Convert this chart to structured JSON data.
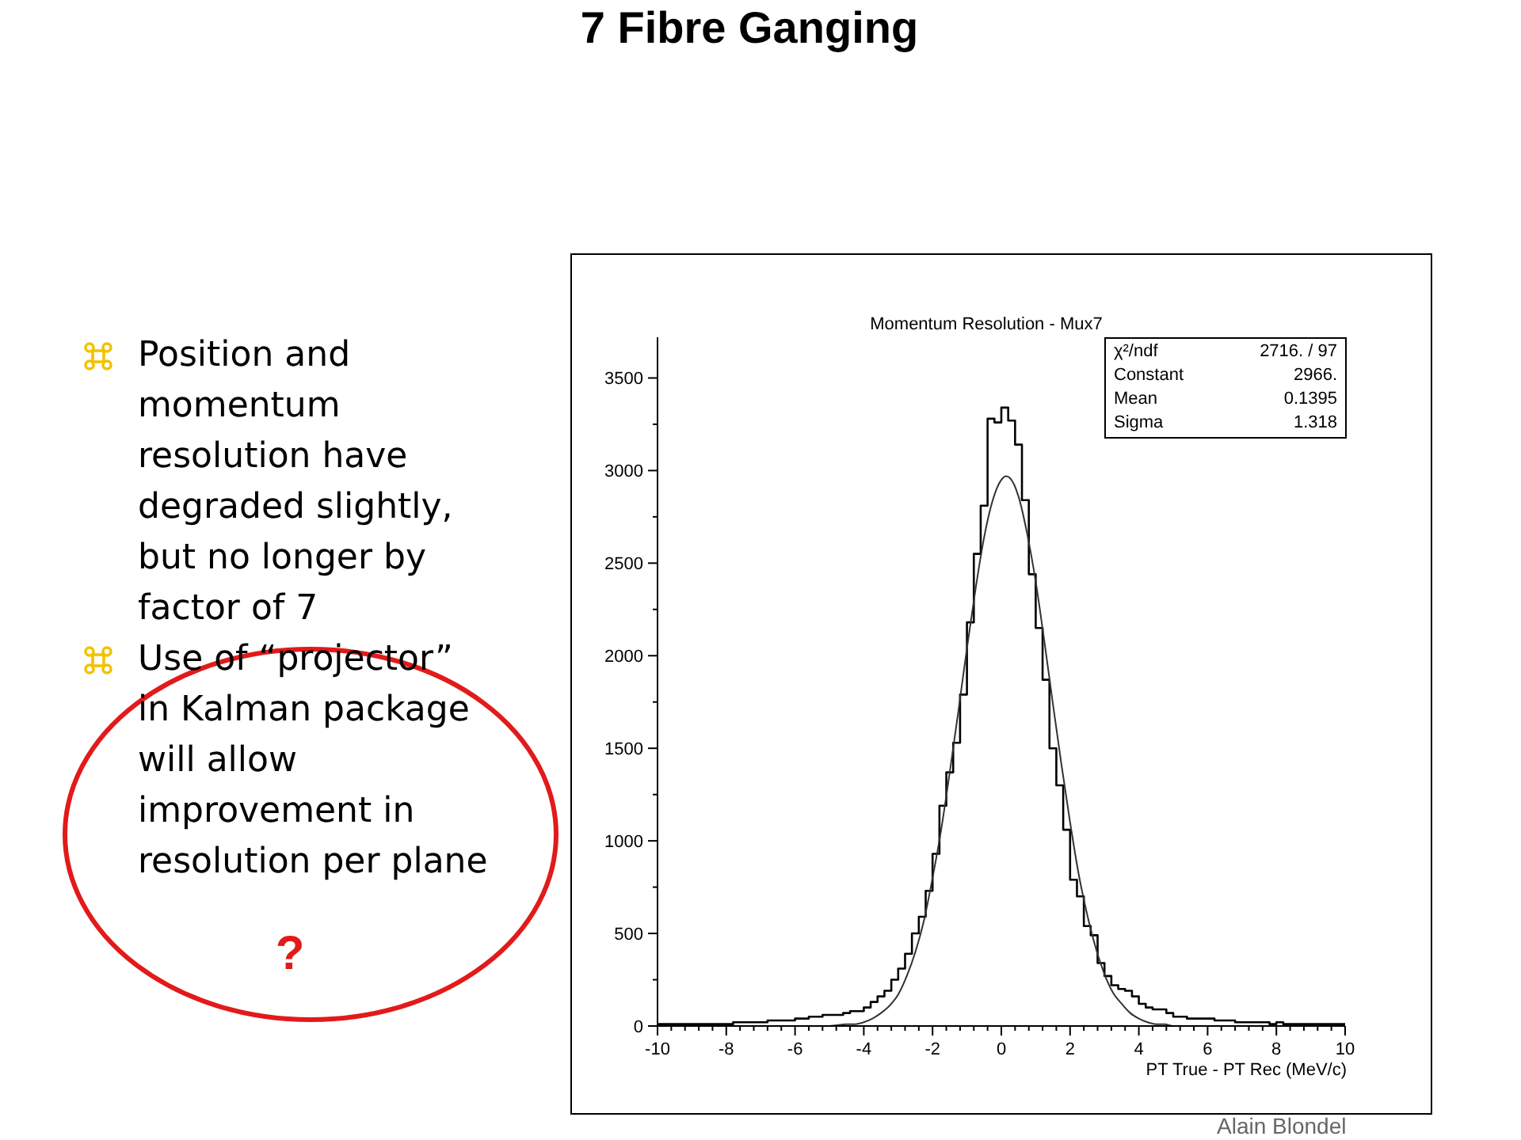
{
  "chart_data": {
    "type": "histogram",
    "title": "7 Fibre Ganging",
    "subtitle": "Momentum Resolution - Mux7",
    "xlabel": "PT True - PT Rec (MeV/c)",
    "annotations": [
      "Position and momentum resolution have degraded slightly, but no longer by factor of 7",
      "Use of “projector” in Kalman package will allow improvement in resolution per plane",
      "?",
      "χ²/ndf 2716. / 97",
      "Constant 2966.",
      "Mean 0.1395",
      "Sigma 1.318",
      "Alain Blondel"
    ],
    "xlim": [
      -10,
      10
    ],
    "xticks": [
      -10,
      {
        "value": -9.6,
        "label": null
      },
      {
        "value": -9.2,
        "label": null
      },
      {
        "value": -8.8,
        "label": null
      },
      {
        "value": -8.4,
        "label": null
      },
      -8,
      {
        "value": -7.6,
        "label": null
      },
      {
        "value": -7.2,
        "label": null
      },
      {
        "value": -6.8,
        "label": null
      },
      {
        "value": -6.4,
        "label": null
      },
      -6,
      {
        "value": -5.6,
        "label": null
      },
      {
        "value": -5.2,
        "label": null
      },
      {
        "value": -4.8,
        "label": null
      },
      {
        "value": -4.4,
        "label": null
      },
      -4,
      {
        "value": -3.6,
        "label": null
      },
      {
        "value": -3.2,
        "label": null
      },
      {
        "value": -2.8,
        "label": null
      },
      {
        "value": -2.4,
        "label": null
      },
      -2,
      {
        "value": -1.6,
        "label": null
      },
      {
        "value": -1.2,
        "label": null
      },
      {
        "value": -0.8,
        "label": null
      },
      {
        "value": -0.4,
        "label": null
      },
      0,
      {
        "value": 0.4,
        "label": null
      },
      {
        "value": 0.8,
        "label": null
      },
      {
        "value": 1.2,
        "label": null
      },
      {
        "value": 1.6,
        "label": null
      },
      2,
      {
        "value": 2.4,
        "label": null
      },
      {
        "value": 2.8,
        "label": null
      },
      {
        "value": 3.2,
        "label": null
      },
      {
        "value": 3.6,
        "label": null
      },
      4,
      {
        "value": 4.4,
        "label": null
      },
      {
        "value": 4.8,
        "label": null
      },
      {
        "value": 5.2,
        "label": null
      },
      {
        "value": 5.6,
        "label": null
      },
      6,
      {
        "value": 6.4,
        "label": null
      },
      {
        "value": 6.8,
        "label": null
      },
      {
        "value": 7.2,
        "label": null
      },
      {
        "value": 7.6,
        "label": null
      },
      8,
      {
        "value": 8.4,
        "label": null
      },
      {
        "value": 8.8,
        "label": null
      },
      {
        "value": 9.2,
        "label": null
      },
      {
        "value": 9.6,
        "label": null
      },
      10
    ],
    "ylim": [
      0,
      3720
    ],
    "yticks": [
      0,
      {
        "value": 250,
        "label": null
      },
      500,
      {
        "value": 750,
        "label": null
      },
      1000,
      {
        "value": 1250,
        "label": null
      },
      1500,
      {
        "value": 1750,
        "label": null
      },
      2000,
      {
        "value": 2250,
        "label": null
      },
      2500,
      {
        "value": 2750,
        "label": null
      },
      3000,
      {
        "value": 3250,
        "label": null
      },
      3500
    ],
    "series": [
      {
        "color": "#000000",
        "bins": [
          -10,
          -9.8,
          -9.6,
          -9.4,
          -9.2,
          -9,
          -8.8,
          -8.6,
          -8.4,
          -8.2,
          -8,
          -7.8,
          -7.6,
          -7.4,
          -7.2,
          -7,
          -6.8,
          -6.6,
          -6.4,
          -6.2,
          -6,
          -5.8,
          -5.6,
          -5.4,
          -5.2,
          -5,
          -4.8,
          -4.6,
          -4.4,
          -4.2,
          -4,
          -3.8,
          -3.6,
          -3.4,
          -3.2,
          -3,
          -2.8,
          -2.6,
          -2.4,
          -2.2,
          -2,
          -1.8,
          -1.6,
          -1.4,
          -1.2,
          -1,
          -0.8,
          -0.6,
          -0.4,
          -0.2,
          0,
          0.2,
          0.4,
          0.6,
          0.8,
          1,
          1.2,
          1.4,
          1.6,
          1.8,
          2,
          2.2,
          2.4,
          2.6,
          2.8,
          3,
          3.2,
          3.4,
          3.6,
          3.8,
          4,
          4.2,
          4.4,
          4.6,
          4.8,
          5,
          5.2,
          5.4,
          5.6,
          5.8,
          6,
          6.2,
          6.4,
          6.6,
          6.8,
          7,
          7.2,
          7.4,
          7.6,
          7.8,
          8,
          8.2,
          8.4,
          8.6,
          8.8,
          9,
          9.2,
          9.4,
          9.6,
          9.8,
          10
        ],
        "values": [
          10,
          10,
          10,
          10,
          10,
          10,
          10,
          10,
          10,
          10,
          10,
          20,
          20,
          20,
          20,
          20,
          30,
          30,
          30,
          30,
          40,
          40,
          50,
          50,
          60,
          60,
          60,
          70,
          80,
          80,
          100,
          130,
          160,
          190,
          250,
          310,
          390,
          500,
          590,
          730,
          930,
          1190,
          1370,
          1530,
          1790,
          2180,
          2550,
          2810,
          3280,
          3260,
          3340,
          3270,
          3140,
          2840,
          2440,
          2150,
          1870,
          1500,
          1300,
          1060,
          790,
          700,
          540,
          490,
          340,
          270,
          220,
          200,
          190,
          160,
          120,
          100,
          90,
          90,
          70,
          50,
          50,
          40,
          40,
          40,
          40,
          30,
          30,
          30,
          20,
          20,
          20,
          20,
          20,
          10,
          20,
          10,
          10,
          10,
          10,
          10,
          10,
          10,
          10,
          10
        ]
      },
      {
        "type": "line",
        "color": "#333333",
        "x": [
          -10,
          -6,
          -5,
          -4.5,
          -4.25,
          -4,
          -3.75,
          -3.5,
          -3.25,
          -3,
          -2.75,
          -2.5,
          -2.25,
          -2,
          -1.75,
          -1.5,
          -1.25,
          -1,
          -0.75,
          -0.5,
          -0.25,
          0,
          0.14,
          0.25,
          0.5,
          0.75,
          1,
          1.25,
          1.5,
          1.75,
          2,
          2.25,
          2.5,
          2.75,
          3,
          3.25,
          3.5,
          3.75,
          4,
          4.25,
          4.5,
          4.75,
          5,
          6,
          10
        ],
        "values": [
          0,
          0,
          0,
          10,
          10,
          20,
          40,
          70,
          110,
          170,
          270,
          400,
          570,
          800,
          1060,
          1370,
          1700,
          2040,
          2360,
          2640,
          2840,
          2950,
          2970,
          2960,
          2860,
          2660,
          2400,
          2080,
          1740,
          1410,
          1100,
          820,
          600,
          420,
          280,
          180,
          120,
          70,
          40,
          20,
          10,
          10,
          0,
          0,
          0
        ]
      }
    ]
  }
}
